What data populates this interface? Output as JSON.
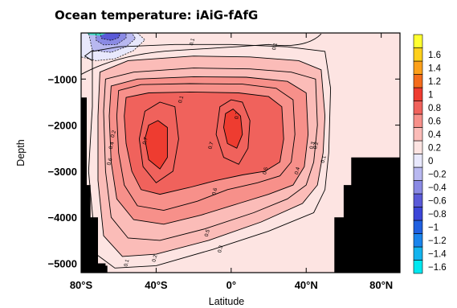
{
  "chart_data": {
    "type": "heatmap",
    "title": "Ocean temperature: iAiG-fAfG",
    "xlabel": "Latitude",
    "ylabel": "Depth",
    "xlim": [
      -80,
      90
    ],
    "ylim": [
      -5200,
      0
    ],
    "x_ticks": [
      {
        "value": -80,
        "label": "80°S"
      },
      {
        "value": -40,
        "label": "40°S"
      },
      {
        "value": 0,
        "label": "0°"
      },
      {
        "value": 40,
        "label": "40°N"
      },
      {
        "value": 80,
        "label": "80°N"
      }
    ],
    "y_ticks": [
      {
        "value": -1000,
        "label": "−1000"
      },
      {
        "value": -2000,
        "label": "−2000"
      },
      {
        "value": -3000,
        "label": "−3000"
      },
      {
        "value": -4000,
        "label": "−4000"
      },
      {
        "value": -5000,
        "label": "−5000"
      }
    ],
    "colorbar": {
      "levels": [
        -1.6,
        -1.4,
        -1.2,
        -1,
        -0.8,
        -0.6,
        -0.4,
        -0.2,
        0,
        0.2,
        0.4,
        0.6,
        0.8,
        1,
        1.2,
        1.4,
        1.6
      ],
      "labels": [
        "−1.6",
        "−1.4",
        "−1.2",
        "−1",
        "−0.8",
        "−0.6",
        "−0.4",
        "−0.2",
        "0",
        "0.2",
        "0.4",
        "0.6",
        "0.8",
        "1",
        "1.2",
        "1.4",
        "1.6"
      ],
      "colors": [
        "#00e8f0",
        "#14b4ee",
        "#1a84ec",
        "#2060e0",
        "#3c46d8",
        "#5a5ad8",
        "#8a8ae4",
        "#b8b8f0",
        "#e8e8fc",
        "#fde4e2",
        "#fbbcb8",
        "#f7908a",
        "#f0625c",
        "#ee3c30",
        "#f46c1c",
        "#fca01a",
        "#fed01c",
        "#ffff30"
      ]
    },
    "grid": false,
    "contour_labels": [
      {
        "lat": -26,
        "depth": -1450,
        "text": "0.1"
      },
      {
        "lat": -62,
        "depth": -2200,
        "text": "0.2"
      },
      {
        "lat": -63,
        "depth": -2450,
        "text": "0.4"
      },
      {
        "lat": -64,
        "depth": -2800,
        "text": "0.6"
      },
      {
        "lat": -45,
        "depth": -2350,
        "text": "0.7"
      },
      {
        "lat": -10,
        "depth": -2450,
        "text": "0.7"
      },
      {
        "lat": 4,
        "depth": -1800,
        "text": "0.7"
      },
      {
        "lat": -8,
        "depth": -3450,
        "text": "0.6"
      },
      {
        "lat": 19,
        "depth": -3000,
        "text": "0.5"
      },
      {
        "lat": 36,
        "depth": -3000,
        "text": "0.4"
      },
      {
        "lat": 44,
        "depth": -2450,
        "text": "0.3"
      },
      {
        "lat": 46,
        "depth": -2450,
        "text": "0.2"
      },
      {
        "lat": 50,
        "depth": -2750,
        "text": "0.1"
      },
      {
        "lat": -12,
        "depth": -4350,
        "text": "0.5"
      },
      {
        "lat": -5,
        "depth": -4700,
        "text": "0.3"
      },
      {
        "lat": -40,
        "depth": -4900,
        "text": "0.2"
      },
      {
        "lat": -55,
        "depth": -5000,
        "text": "0.1"
      },
      {
        "lat": 24,
        "depth": -300,
        "text": "0.1"
      },
      {
        "lat": -20,
        "depth": -200,
        "text": "0.1"
      }
    ]
  }
}
